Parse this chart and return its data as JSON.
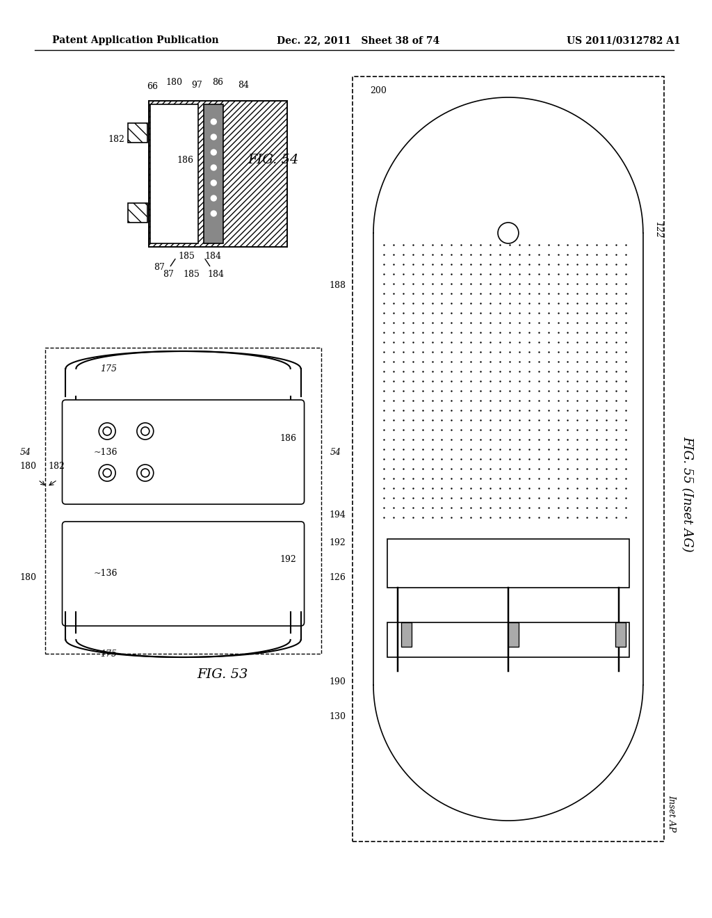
{
  "background_color": "#ffffff",
  "header_left": "Patent Application Publication",
  "header_mid": "Dec. 22, 2011   Sheet 38 of 74",
  "header_right": "US 2011/0312782 A1",
  "fig54_label": "FIG. 54",
  "fig53_label": "FIG. 53",
  "fig55_label": "FIG. 55 (Inset AG)",
  "inset_ap_label": "Inset AP",
  "labels_fig54": [
    "66",
    "180",
    "97",
    "86",
    "84",
    "182",
    "186",
    "185",
    "184",
    "87"
  ],
  "labels_fig53": [
    "180",
    "182",
    "136",
    "186",
    "54",
    "54",
    "180",
    "136",
    "192",
    "175",
    "175"
  ],
  "labels_fig55": [
    "200",
    "122",
    "188",
    "194",
    "192",
    "126",
    "190",
    "130"
  ]
}
